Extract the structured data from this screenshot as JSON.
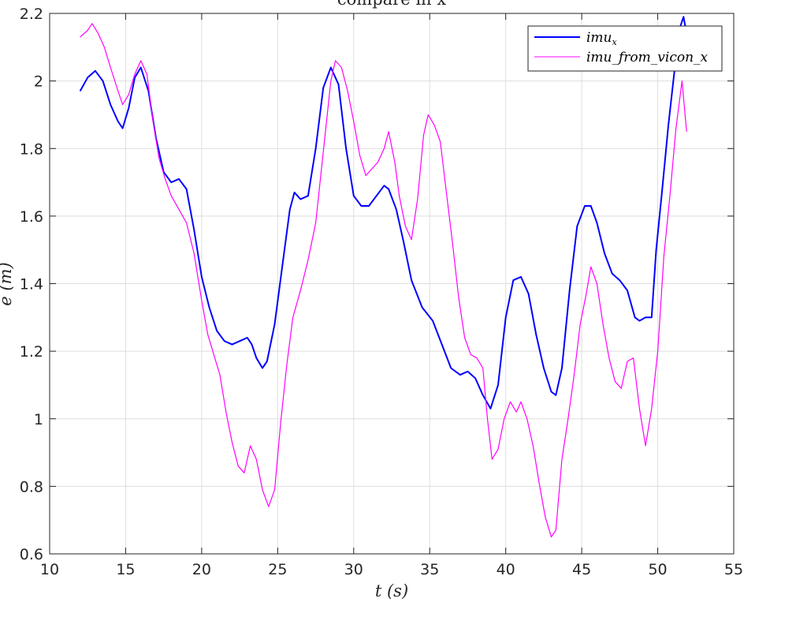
{
  "chart_data": {
    "type": "line",
    "title": "compare in x",
    "xlabel": "t (s)",
    "ylabel": "e (m)",
    "xlim": [
      10,
      55
    ],
    "ylim": [
      0.6,
      2.2
    ],
    "xticks": [
      10,
      15,
      20,
      25,
      30,
      35,
      40,
      45,
      50,
      55
    ],
    "yticks": [
      0.6,
      0.8,
      1,
      1.2,
      1.4,
      1.6,
      1.8,
      2,
      2.2
    ],
    "xtick_labels": [
      "10",
      "15",
      "20",
      "25",
      "30",
      "35",
      "40",
      "45",
      "50",
      "55"
    ],
    "ytick_labels": [
      "0.6",
      "0.8",
      "1",
      "1.2",
      "1.4",
      "1.6",
      "1.8",
      "2",
      "2.2"
    ],
    "grid": true,
    "legend_position": "top-right",
    "series": [
      {
        "name": "imu_x",
        "legend_label": "imu",
        "legend_subscript": "x",
        "color": "#0000ff",
        "x": [
          12.0,
          12.5,
          13.0,
          13.5,
          14.0,
          14.5,
          14.8,
          15.2,
          15.6,
          16.0,
          16.5,
          17.0,
          17.5,
          18.0,
          18.5,
          19.0,
          19.5,
          20.0,
          20.5,
          21.0,
          21.5,
          22.0,
          22.5,
          23.0,
          23.3,
          23.6,
          24.0,
          24.3,
          24.8,
          25.3,
          25.8,
          26.1,
          26.5,
          27.0,
          27.5,
          28.0,
          28.5,
          29.0,
          29.5,
          30.0,
          30.5,
          31.0,
          31.5,
          32.0,
          32.3,
          32.8,
          33.3,
          33.8,
          34.5,
          35.2,
          35.8,
          36.4,
          37.0,
          37.5,
          38.0,
          38.5,
          39.0,
          39.5,
          40.0,
          40.5,
          41.0,
          41.5,
          42.0,
          42.5,
          43.0,
          43.3,
          43.7,
          44.2,
          44.7,
          45.2,
          45.6,
          46.0,
          46.5,
          47.0,
          47.5,
          48.0,
          48.5,
          48.8,
          49.2,
          49.6,
          49.9,
          50.3,
          50.7,
          51.1,
          51.4,
          51.7,
          51.9
        ],
        "y": [
          1.97,
          2.01,
          2.03,
          2.0,
          1.93,
          1.88,
          1.86,
          1.92,
          2.01,
          2.04,
          1.97,
          1.83,
          1.73,
          1.7,
          1.71,
          1.68,
          1.56,
          1.42,
          1.33,
          1.26,
          1.23,
          1.22,
          1.23,
          1.24,
          1.22,
          1.18,
          1.15,
          1.17,
          1.28,
          1.45,
          1.62,
          1.67,
          1.65,
          1.66,
          1.8,
          1.98,
          2.04,
          1.99,
          1.8,
          1.66,
          1.63,
          1.63,
          1.66,
          1.69,
          1.68,
          1.62,
          1.52,
          1.41,
          1.33,
          1.29,
          1.22,
          1.15,
          1.13,
          1.14,
          1.12,
          1.07,
          1.03,
          1.1,
          1.3,
          1.41,
          1.42,
          1.37,
          1.25,
          1.15,
          1.08,
          1.07,
          1.15,
          1.38,
          1.57,
          1.63,
          1.63,
          1.58,
          1.49,
          1.43,
          1.41,
          1.38,
          1.3,
          1.29,
          1.3,
          1.3,
          1.5,
          1.68,
          1.87,
          2.03,
          2.15,
          2.19,
          2.14
        ]
      },
      {
        "name": "imu_from_vicon_x",
        "legend_label": "imu_from_vicon_x",
        "color": "#ff00ff",
        "x": [
          12.0,
          12.5,
          12.8,
          13.2,
          13.6,
          14.0,
          14.5,
          14.8,
          15.2,
          15.6,
          16.0,
          16.4,
          16.8,
          17.2,
          17.6,
          18.0,
          18.5,
          19.0,
          19.5,
          20.0,
          20.4,
          20.8,
          21.2,
          21.6,
          22.0,
          22.4,
          22.8,
          23.2,
          23.6,
          24.0,
          24.4,
          24.8,
          25.2,
          25.6,
          26.0,
          26.5,
          27.0,
          27.5,
          28.0,
          28.5,
          28.8,
          29.2,
          29.6,
          30.0,
          30.4,
          30.8,
          31.2,
          31.6,
          32.0,
          32.3,
          32.7,
          33.0,
          33.4,
          33.8,
          34.2,
          34.6,
          34.9,
          35.3,
          35.7,
          36.1,
          36.5,
          36.9,
          37.3,
          37.7,
          38.1,
          38.5,
          38.8,
          39.1,
          39.5,
          39.9,
          40.3,
          40.7,
          41.0,
          41.4,
          41.8,
          42.2,
          42.6,
          43.0,
          43.3,
          43.7,
          44.1,
          44.5,
          44.9,
          45.3,
          45.6,
          46.0,
          46.4,
          46.8,
          47.2,
          47.6,
          48.0,
          48.4,
          48.8,
          49.2,
          49.6,
          50.0,
          50.4,
          50.8,
          51.2,
          51.6,
          51.9
        ],
        "y": [
          2.13,
          2.15,
          2.17,
          2.14,
          2.1,
          2.04,
          1.97,
          1.93,
          1.96,
          2.02,
          2.06,
          2.02,
          1.88,
          1.77,
          1.71,
          1.66,
          1.62,
          1.58,
          1.49,
          1.35,
          1.25,
          1.19,
          1.13,
          1.02,
          0.93,
          0.86,
          0.84,
          0.92,
          0.88,
          0.79,
          0.74,
          0.79,
          0.99,
          1.16,
          1.3,
          1.38,
          1.47,
          1.58,
          1.79,
          2.0,
          2.06,
          2.04,
          1.97,
          1.88,
          1.78,
          1.72,
          1.74,
          1.76,
          1.8,
          1.85,
          1.76,
          1.66,
          1.57,
          1.53,
          1.65,
          1.84,
          1.9,
          1.87,
          1.82,
          1.67,
          1.52,
          1.36,
          1.24,
          1.19,
          1.18,
          1.15,
          1.0,
          0.88,
          0.91,
          1.0,
          1.05,
          1.02,
          1.05,
          1.0,
          0.92,
          0.81,
          0.71,
          0.65,
          0.67,
          0.88,
          1.0,
          1.13,
          1.28,
          1.37,
          1.45,
          1.4,
          1.28,
          1.18,
          1.11,
          1.09,
          1.17,
          1.18,
          1.03,
          0.92,
          1.03,
          1.2,
          1.48,
          1.66,
          1.86,
          2.0,
          1.85
        ]
      }
    ]
  }
}
